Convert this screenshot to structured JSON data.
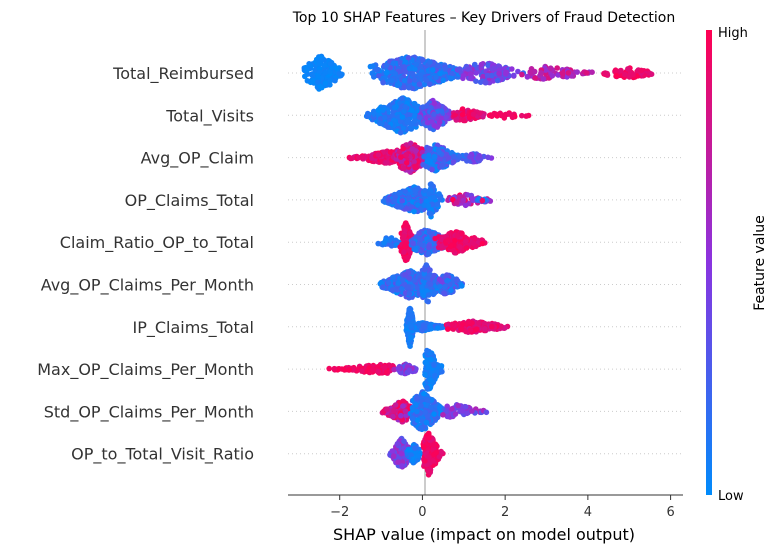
{
  "chart_data": {
    "type": "scatter",
    "subtype": "shap-beeswarm",
    "title": "Top 10 SHAP Features – Key Drivers of Fraud Detection",
    "xlabel": "SHAP value (impact on model output)",
    "xlim": [
      -3.25,
      6.3
    ],
    "xticks": [
      -2,
      0,
      2,
      4,
      6
    ],
    "xtick_labels": [
      "−2",
      "0",
      "2",
      "4",
      "6"
    ],
    "colorbar": {
      "label": "Feature value",
      "high_label": "High",
      "low_label": "Low",
      "low_color": "#008bfb",
      "high_color": "#ff0052"
    },
    "features": [
      {
        "name": "Total_Reimbursed",
        "clusters": [
          {
            "min": -2.9,
            "max": -1.9,
            "center": -2.45,
            "count": 180,
            "height": 18,
            "vmin": 0.0,
            "vmax": 0.08
          },
          {
            "min": -1.3,
            "max": 1.2,
            "center": -0.3,
            "count": 420,
            "height": 17,
            "vmin": 0.02,
            "vmax": 0.32
          },
          {
            "min": 0.8,
            "max": 2.5,
            "center": 1.5,
            "count": 140,
            "height": 11,
            "vmin": 0.2,
            "vmax": 0.6
          },
          {
            "min": 2.3,
            "max": 4.2,
            "center": 3.0,
            "count": 70,
            "height": 7,
            "vmin": 0.5,
            "vmax": 0.85
          },
          {
            "min": 4.0,
            "max": 5.7,
            "center": 5.0,
            "count": 60,
            "height": 5,
            "vmin": 0.85,
            "vmax": 1.0
          }
        ]
      },
      {
        "name": "Total_Visits",
        "clusters": [
          {
            "min": -1.4,
            "max": 0.2,
            "center": -0.5,
            "count": 300,
            "height": 18,
            "vmin": 0.0,
            "vmax": 0.2
          },
          {
            "min": -0.1,
            "max": 0.8,
            "center": 0.25,
            "count": 180,
            "height": 15,
            "vmin": 0.15,
            "vmax": 0.55
          },
          {
            "min": 0.7,
            "max": 1.7,
            "center": 1.0,
            "count": 60,
            "height": 7,
            "vmin": 0.8,
            "vmax": 1.0
          },
          {
            "min": 1.6,
            "max": 2.7,
            "center": 2.0,
            "count": 20,
            "height": 3,
            "vmin": 0.9,
            "vmax": 1.0
          }
        ]
      },
      {
        "name": "Avg_OP_Claim",
        "clusters": [
          {
            "min": -1.8,
            "max": -0.4,
            "center": -0.8,
            "count": 130,
            "height": 7,
            "vmin": 0.8,
            "vmax": 1.0
          },
          {
            "min": -0.7,
            "max": 0.3,
            "center": -0.3,
            "count": 200,
            "height": 16,
            "vmin": 0.6,
            "vmax": 1.0
          },
          {
            "min": 0.0,
            "max": 1.1,
            "center": 0.3,
            "count": 150,
            "height": 14,
            "vmin": 0.0,
            "vmax": 0.4
          },
          {
            "min": 0.9,
            "max": 1.8,
            "center": 1.2,
            "count": 30,
            "height": 5,
            "vmin": 0.2,
            "vmax": 0.5
          }
        ]
      },
      {
        "name": "OP_Claims_Total",
        "clusters": [
          {
            "min": -1.0,
            "max": 0.4,
            "center": -0.2,
            "count": 320,
            "height": 13,
            "vmin": 0.0,
            "vmax": 0.35
          },
          {
            "min": 0.0,
            "max": 0.5,
            "center": 0.2,
            "count": 80,
            "height": 18,
            "vmin": 0.0,
            "vmax": 0.2
          },
          {
            "min": 0.5,
            "max": 1.7,
            "center": 1.0,
            "count": 50,
            "height": 6,
            "vmin": 0.4,
            "vmax": 1.0
          },
          {
            "min": 1.2,
            "max": 1.9,
            "center": 1.5,
            "count": 12,
            "height": 2,
            "vmin": 0.0,
            "vmax": 1.0
          }
        ]
      },
      {
        "name": "Claim_Ratio_OP_to_Total",
        "clusters": [
          {
            "min": -1.1,
            "max": -0.4,
            "center": -0.8,
            "count": 30,
            "height": 5,
            "vmin": 0.0,
            "vmax": 0.25
          },
          {
            "min": -0.55,
            "max": -0.2,
            "center": -0.4,
            "count": 130,
            "height": 20,
            "vmin": 0.85,
            "vmax": 1.0
          },
          {
            "min": -0.3,
            "max": 0.8,
            "center": 0.1,
            "count": 200,
            "height": 13,
            "vmin": 0.0,
            "vmax": 0.35
          },
          {
            "min": 0.3,
            "max": 1.6,
            "center": 0.8,
            "count": 130,
            "height": 11,
            "vmin": 0.85,
            "vmax": 1.0
          }
        ]
      },
      {
        "name": "Avg_OP_Claims_Per_Month",
        "clusters": [
          {
            "min": -1.1,
            "max": 0.3,
            "center": -0.3,
            "count": 260,
            "height": 14,
            "vmin": 0.0,
            "vmax": 0.35
          },
          {
            "min": -0.1,
            "max": 0.5,
            "center": 0.1,
            "count": 100,
            "height": 20,
            "vmin": 0.0,
            "vmax": 0.3
          },
          {
            "min": 0.3,
            "max": 1.0,
            "center": 0.6,
            "count": 130,
            "height": 11,
            "vmin": 0.0,
            "vmax": 0.45
          }
        ]
      },
      {
        "name": "IP_Claims_Total",
        "clusters": [
          {
            "min": -0.4,
            "max": -0.2,
            "center": -0.3,
            "count": 110,
            "height": 20,
            "vmin": 0.0,
            "vmax": 0.15
          },
          {
            "min": -0.3,
            "max": 0.6,
            "center": 0.0,
            "count": 160,
            "height": 4,
            "vmin": 0.0,
            "vmax": 0.2
          },
          {
            "min": 0.5,
            "max": 2.2,
            "center": 1.2,
            "count": 160,
            "height": 6,
            "vmin": 0.8,
            "vmax": 1.0
          }
        ]
      },
      {
        "name": "Max_OP_Claims_Per_Month",
        "clusters": [
          {
            "min": -2.4,
            "max": -0.6,
            "center": -1.0,
            "count": 110,
            "height": 5,
            "vmin": 0.88,
            "vmax": 1.0
          },
          {
            "min": -0.7,
            "max": -0.1,
            "center": -0.4,
            "count": 60,
            "height": 5,
            "vmin": 0.3,
            "vmax": 0.7
          },
          {
            "min": 0.05,
            "max": 0.5,
            "center": 0.15,
            "count": 170,
            "height": 22,
            "vmin": 0.0,
            "vmax": 0.15
          }
        ]
      },
      {
        "name": "Std_OP_Claims_Per_Month",
        "clusters": [
          {
            "min": -1.0,
            "max": -0.2,
            "center": -0.5,
            "count": 120,
            "height": 11,
            "vmin": 0.55,
            "vmax": 1.0
          },
          {
            "min": -0.3,
            "max": 0.6,
            "center": 0.0,
            "count": 240,
            "height": 20,
            "vmin": 0.0,
            "vmax": 0.25
          },
          {
            "min": 0.4,
            "max": 1.6,
            "center": 0.8,
            "count": 60,
            "height": 7,
            "vmin": 0.3,
            "vmax": 0.65
          }
        ]
      },
      {
        "name": "OP_to_Total_Visit_Ratio",
        "clusters": [
          {
            "min": -0.8,
            "max": -0.3,
            "center": -0.5,
            "count": 140,
            "height": 16,
            "vmin": 0.25,
            "vmax": 0.65
          },
          {
            "min": -0.4,
            "max": 0.0,
            "center": -0.2,
            "count": 60,
            "height": 10,
            "vmin": 0.0,
            "vmax": 0.2
          },
          {
            "min": 0.0,
            "max": 0.5,
            "center": 0.15,
            "count": 200,
            "height": 22,
            "vmin": 0.85,
            "vmax": 1.0
          }
        ]
      }
    ]
  }
}
